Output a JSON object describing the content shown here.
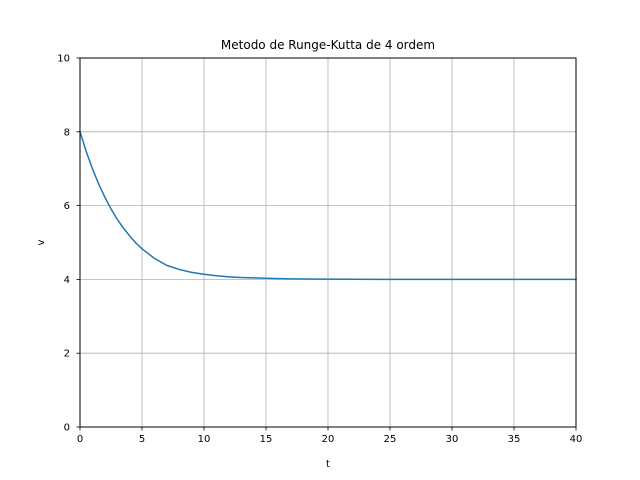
{
  "chart_data": {
    "type": "line",
    "title": "Metodo de Runge-Kutta de 4 ordem",
    "xlabel": "t",
    "ylabel": "v",
    "xlim": [
      0,
      40
    ],
    "ylim": [
      0,
      10
    ],
    "xticks": [
      0,
      5,
      10,
      15,
      20,
      25,
      30,
      35,
      40
    ],
    "yticks": [
      0,
      2,
      4,
      6,
      8,
      10
    ],
    "grid": true,
    "line_color": "#1f77b4",
    "grid_color": "#b0b0b0",
    "series": [
      {
        "x": [
          0,
          0.5,
          1,
          1.5,
          2,
          2.5,
          3,
          3.5,
          4,
          4.5,
          5,
          6,
          7,
          8,
          9,
          10,
          11,
          12,
          13,
          14,
          15,
          16,
          17,
          18,
          19,
          20,
          22,
          24,
          26,
          28,
          30,
          32,
          34,
          36,
          38,
          40
        ],
        "values": [
          8.0,
          7.47,
          7.0,
          6.59,
          6.23,
          5.91,
          5.63,
          5.39,
          5.18,
          4.99,
          4.83,
          4.57,
          4.38,
          4.27,
          4.19,
          4.14,
          4.1,
          4.07,
          4.05,
          4.04,
          4.03,
          4.02,
          4.015,
          4.01,
          4.008,
          4.006,
          4.003,
          4.002,
          4.001,
          4.0,
          4.0,
          4.0,
          4.0,
          4.0,
          4.0,
          4.0
        ]
      }
    ]
  }
}
